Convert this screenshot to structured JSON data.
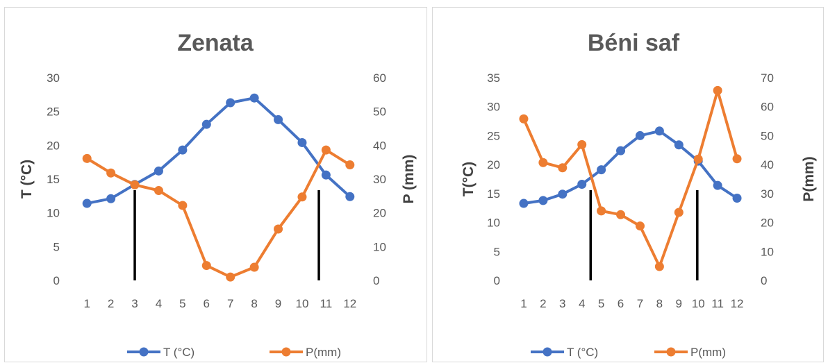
{
  "chart_data": [
    {
      "type": "line",
      "title": "Zenata",
      "categories": [
        "1",
        "2",
        "3",
        "4",
        "5",
        "6",
        "7",
        "8",
        "9",
        "10",
        "11",
        "12"
      ],
      "ylabel_left": "T (°C)",
      "ylabel_right": "P (mm)",
      "ylim_left": [
        0,
        30
      ],
      "ylim_right": [
        0,
        60
      ],
      "yticks_left": [
        "0",
        "5",
        "10",
        "15",
        "20",
        "25",
        "30"
      ],
      "yticks_right": [
        "0",
        "10",
        "20",
        "30",
        "40",
        "50",
        "60"
      ],
      "series": [
        {
          "name": "T (°C)",
          "axis": "left",
          "color": "#4472c4",
          "values": [
            11.4,
            12.1,
            14.2,
            16.2,
            19.3,
            23.1,
            26.3,
            27.0,
            23.8,
            20.4,
            15.6,
            12.4
          ]
        },
        {
          "name": "P(mm)",
          "axis": "right",
          "color": "#ed7d31",
          "values": [
            36.1,
            31.8,
            28.3,
            26.6,
            22.2,
            4.4,
            1.0,
            3.9,
            15.2,
            24.7,
            38.6,
            34.2
          ]
        }
      ],
      "vlines": [
        3,
        10.7
      ],
      "legend_position": "bottom",
      "grid": false
    },
    {
      "type": "line",
      "title": "Béni saf",
      "categories": [
        "1",
        "2",
        "3",
        "4",
        "5",
        "6",
        "7",
        "8",
        "9",
        "10",
        "11",
        "12"
      ],
      "ylabel_left": "T(°C)",
      "ylabel_right": "P(mm)",
      "ylim_left": [
        0,
        35
      ],
      "ylim_right": [
        0,
        70
      ],
      "yticks_left": [
        "0",
        "5",
        "10",
        "15",
        "20",
        "25",
        "30",
        "35"
      ],
      "yticks_right": [
        "0",
        "10",
        "20",
        "30",
        "40",
        "50",
        "60",
        "70"
      ],
      "series": [
        {
          "name": "T (°C)",
          "axis": "left",
          "color": "#4472c4",
          "values": [
            13.3,
            13.8,
            14.9,
            16.6,
            19.1,
            22.4,
            25.0,
            25.8,
            23.4,
            20.6,
            16.4,
            14.2
          ]
        },
        {
          "name": "P(mm)",
          "axis": "right",
          "color": "#ed7d31",
          "values": [
            55.8,
            40.7,
            38.9,
            46.9,
            24.0,
            22.7,
            18.8,
            4.8,
            23.5,
            41.9,
            65.6,
            42.0
          ]
        }
      ],
      "vlines": [
        4.45,
        9.95
      ],
      "legend_position": "bottom",
      "grid": false
    }
  ]
}
